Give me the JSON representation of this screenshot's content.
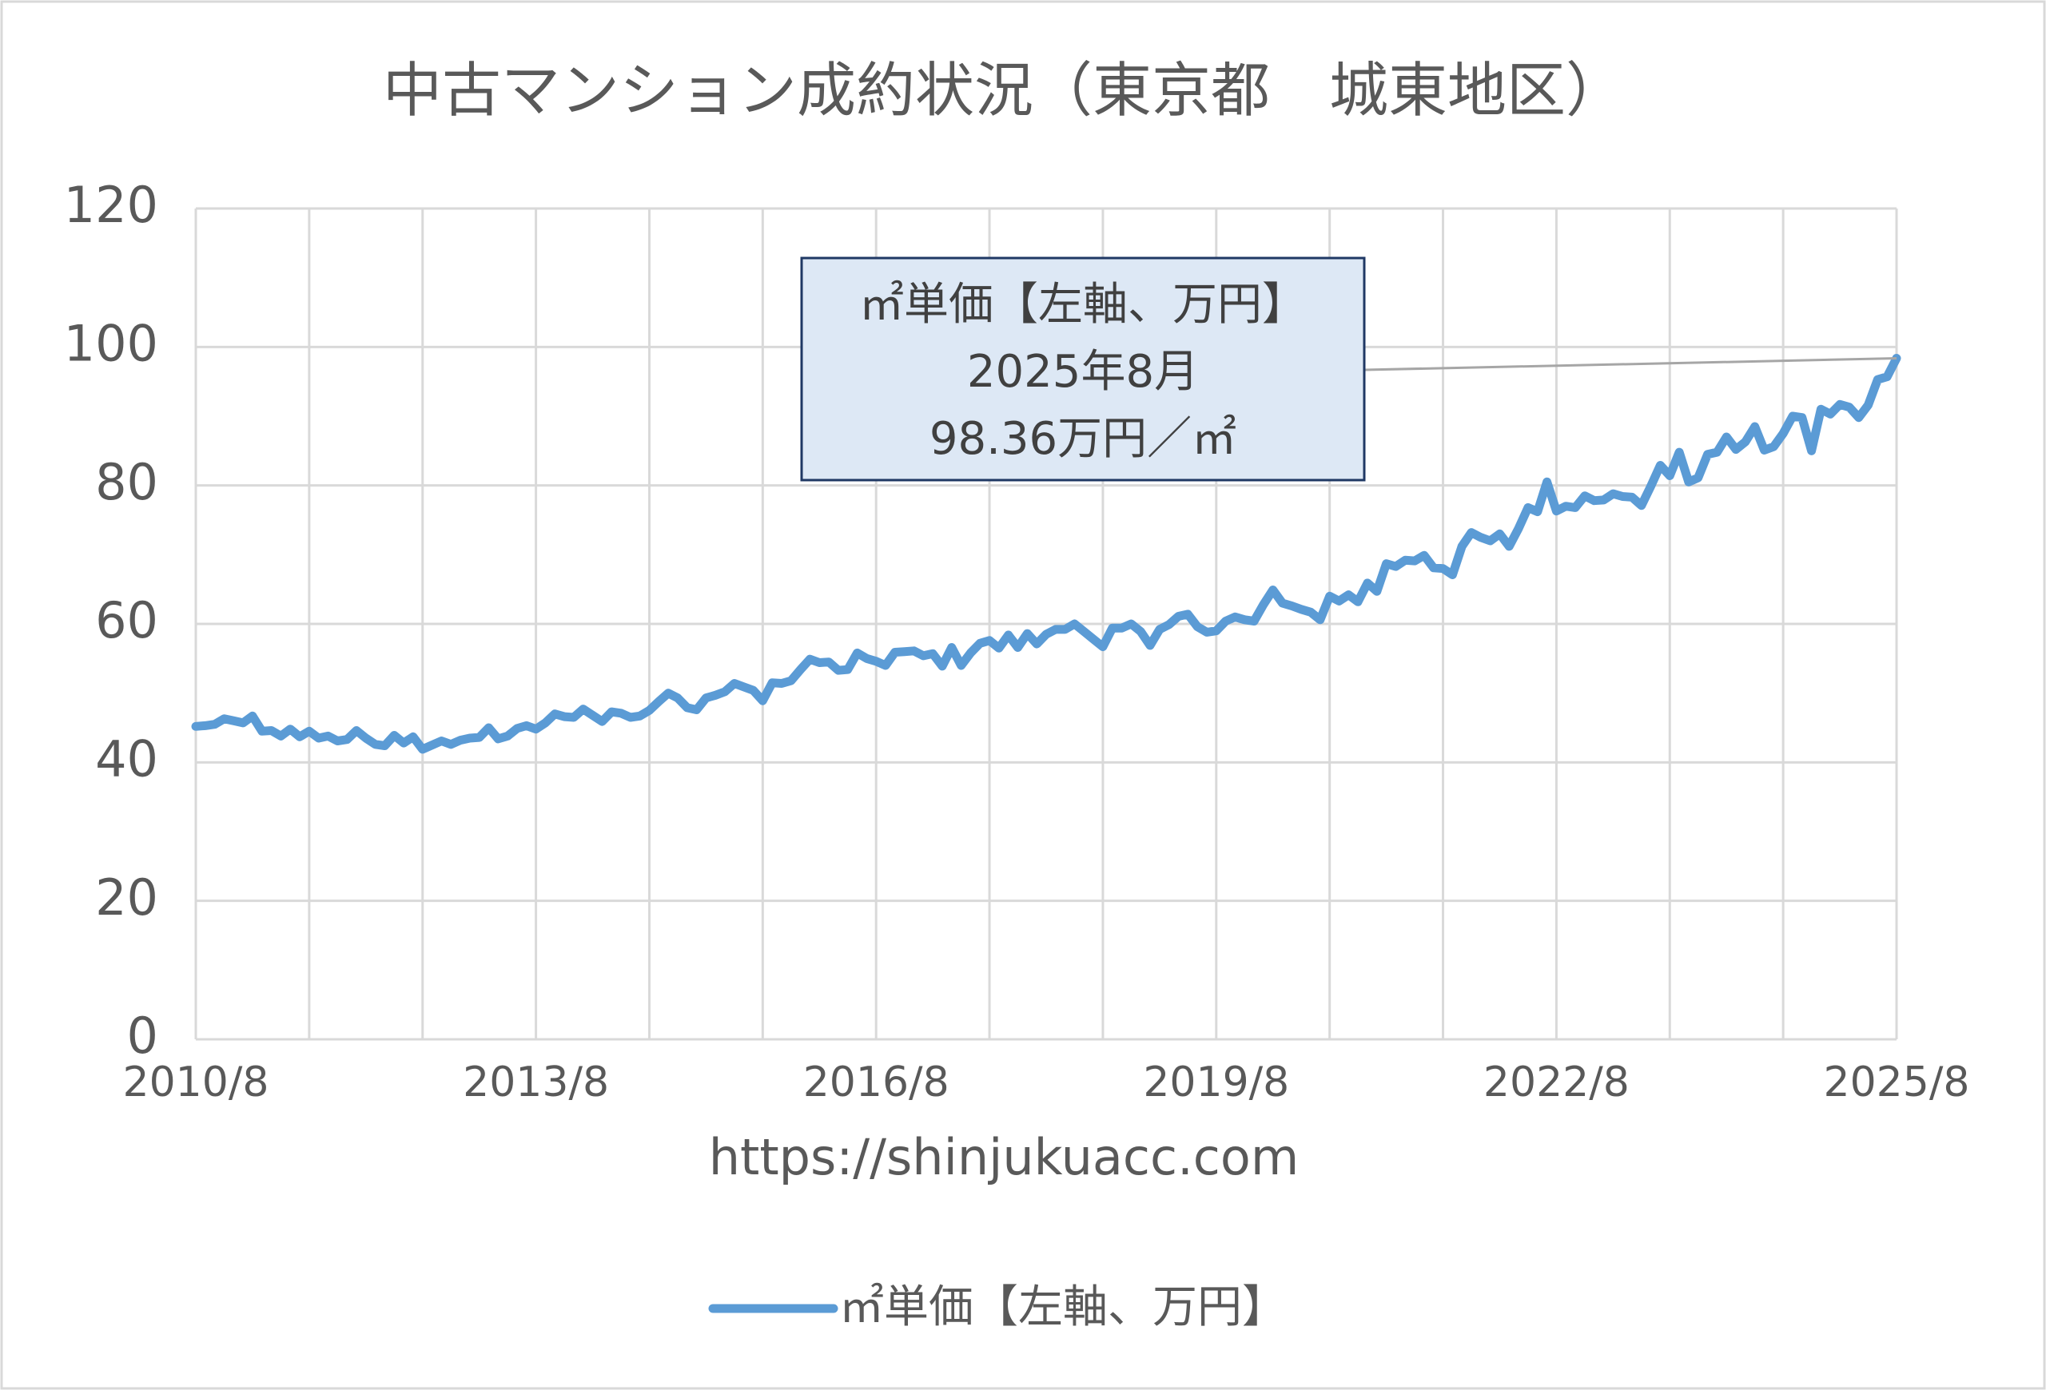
{
  "chart_data": {
    "type": "line",
    "title": "中古マンション成約状況（東京都　城東地区）",
    "xlabel": "https://shinjukuacc.com",
    "categories": [
      "2010/8",
      null,
      null,
      null,
      null,
      null,
      null,
      null,
      null,
      null,
      null,
      null,
      null,
      null,
      null,
      null,
      null,
      null,
      null,
      null,
      null,
      null,
      null,
      null,
      null,
      null,
      null,
      null,
      null,
      null,
      null,
      null,
      null,
      null,
      null,
      null,
      "2013/8",
      null,
      null,
      null,
      null,
      null,
      null,
      null,
      null,
      null,
      null,
      null,
      null,
      null,
      null,
      null,
      null,
      null,
      null,
      null,
      null,
      null,
      null,
      null,
      null,
      null,
      null,
      null,
      null,
      null,
      null,
      null,
      null,
      null,
      null,
      null,
      "2016/8",
      null,
      null,
      null,
      null,
      null,
      null,
      null,
      null,
      null,
      null,
      null,
      null,
      null,
      null,
      null,
      null,
      null,
      null,
      null,
      null,
      null,
      null,
      null,
      null,
      null,
      null,
      null,
      null,
      null,
      null,
      null,
      null,
      null,
      null,
      null,
      "2019/8",
      null,
      null,
      null,
      null,
      null,
      null,
      null,
      null,
      null,
      null,
      null,
      null,
      null,
      null,
      null,
      null,
      null,
      null,
      null,
      null,
      null,
      null,
      null,
      null,
      null,
      null,
      null,
      null,
      null,
      null,
      null,
      null,
      null,
      null,
      null,
      "2022/8",
      null,
      null,
      null,
      null,
      null,
      null,
      null,
      null,
      null,
      null,
      null,
      null,
      null,
      null,
      null,
      null,
      null,
      null,
      null,
      null,
      null,
      null,
      null,
      null,
      null,
      null,
      null,
      null,
      null,
      null,
      null,
      null,
      null,
      null,
      null,
      "2025/8"
    ],
    "series": [
      {
        "name": "㎡単価【左軸、万円】",
        "color": "#5b9bd5",
        "values": [
          45.2,
          45.3,
          45.5,
          46.3,
          46.0,
          45.7,
          46.7,
          44.5,
          44.6,
          43.8,
          44.8,
          43.7,
          44.5,
          43.5,
          43.8,
          43.1,
          43.3,
          44.6,
          43.5,
          42.6,
          42.4,
          43.9,
          42.8,
          43.7,
          41.9,
          42.5,
          43.1,
          42.6,
          43.2,
          43.5,
          43.6,
          45.0,
          43.4,
          43.8,
          44.9,
          45.3,
          44.8,
          45.7,
          47.0,
          46.6,
          46.5,
          47.7,
          46.8,
          45.9,
          47.3,
          47.1,
          46.5,
          46.7,
          47.5,
          48.8,
          50.0,
          49.3,
          47.9,
          47.6,
          49.3,
          49.7,
          50.2,
          51.4,
          50.9,
          50.4,
          48.9,
          51.5,
          51.4,
          51.8,
          53.4,
          54.9,
          54.4,
          54.5,
          53.3,
          53.4,
          55.8,
          55.0,
          54.6,
          54.0,
          55.9,
          56.0,
          56.1,
          55.4,
          55.7,
          53.9,
          56.6,
          54.0,
          55.8,
          57.2,
          57.6,
          56.5,
          58.4,
          56.6,
          58.6,
          57.1,
          58.5,
          59.2,
          59.2,
          60.0,
          58.9,
          57.8,
          56.7,
          59.4,
          59.4,
          60.0,
          58.9,
          56.9,
          59.2,
          59.9,
          61.1,
          61.4,
          59.6,
          58.8,
          59.0,
          60.4,
          61.0,
          60.6,
          60.4,
          62.8,
          64.9,
          63.0,
          62.6,
          62.1,
          61.7,
          60.6,
          64.0,
          63.3,
          64.2,
          63.2,
          65.9,
          64.7,
          68.7,
          68.3,
          69.2,
          69.1,
          69.9,
          68.1,
          68.0,
          67.1,
          71.2,
          73.2,
          72.5,
          72.0,
          73.0,
          71.2,
          73.8,
          76.8,
          76.2,
          80.5,
          76.3,
          77.0,
          76.8,
          78.5,
          77.8,
          77.9,
          78.8,
          78.4,
          78.3,
          77.1,
          79.9,
          82.9,
          81.4,
          84.8,
          80.5,
          81.1,
          84.5,
          84.8,
          87.0,
          85.2,
          86.3,
          88.5,
          85.1,
          85.6,
          87.5,
          90.0,
          89.8,
          85.0,
          91.0,
          90.3,
          91.7,
          91.3,
          89.8,
          91.6,
          95.3,
          95.7,
          98.36
        ]
      }
    ],
    "ylim": [
      0,
      120
    ],
    "yticks": [
      0,
      20,
      40,
      60,
      80,
      100,
      120
    ],
    "grid": true,
    "annotation": {
      "lines": [
        "㎡単価【左軸、万円】",
        "2025年8月",
        "98.36万円／㎡"
      ]
    },
    "legend": "bottom"
  }
}
